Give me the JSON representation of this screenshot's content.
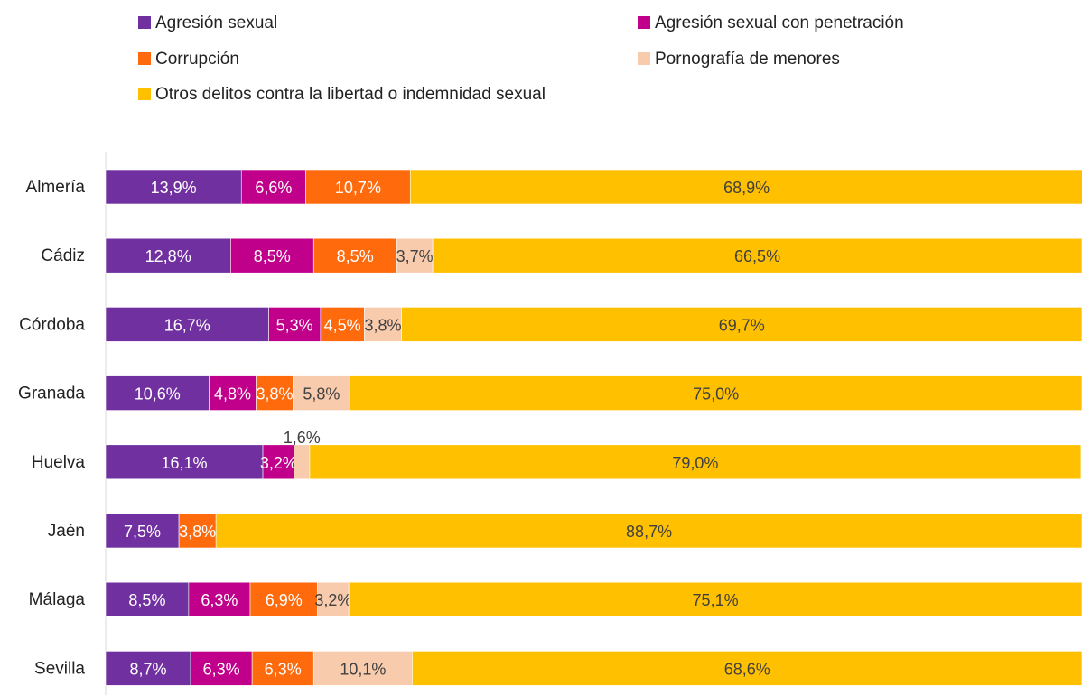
{
  "chart_data": {
    "type": "bar",
    "orientation": "horizontal",
    "stacked": true,
    "percent_stacked": true,
    "categories": [
      "Almería",
      "Cádiz",
      "Córdoba",
      "Granada",
      "Huelva",
      "Jaén",
      "Málaga",
      "Sevilla"
    ],
    "series": [
      {
        "name": "Agresión sexual",
        "color": "#7030A0",
        "label_color": "#ffffff",
        "values": [
          13.9,
          12.8,
          16.7,
          10.6,
          16.1,
          7.5,
          8.5,
          8.7
        ],
        "labels": [
          "13,9%",
          "12,8%",
          "16,7%",
          "10,6%",
          "16,1%",
          "7,5%",
          "8,5%",
          "8,7%"
        ]
      },
      {
        "name": "Agresión sexual  con penetración",
        "color": "#C0008A",
        "label_color": "#ffffff",
        "values": [
          6.6,
          8.5,
          5.3,
          4.8,
          3.2,
          0,
          6.3,
          6.3
        ],
        "labels": [
          "6,6%",
          "8,5%",
          "5,3%",
          "4,8%",
          "3,2%",
          "",
          "6,3%",
          "6,3%"
        ]
      },
      {
        "name": "Corrupción",
        "color": "#FF6A0D",
        "label_color": "#ffffff",
        "values": [
          10.7,
          8.5,
          4.5,
          3.8,
          0,
          3.8,
          6.9,
          6.3
        ],
        "labels": [
          "10,7%",
          "8,5%",
          "4,5%",
          "3,8%",
          "",
          "3,8%",
          "6,9%",
          "6,3%"
        ]
      },
      {
        "name": "Pornografía de menores",
        "color": "#F8CBAD",
        "label_color": "#404040",
        "values": [
          0,
          3.7,
          3.8,
          5.8,
          1.6,
          0,
          3.2,
          10.1
        ],
        "labels": [
          "",
          "3,7%",
          "3,8%",
          "5,8%",
          "1,6%",
          "",
          "3,2%",
          "10,1%"
        ]
      },
      {
        "name": "Otros delitos contra la libertad o indemnidad sexual",
        "color": "#FFC000",
        "label_color": "#404040",
        "values": [
          68.9,
          66.5,
          69.7,
          75.0,
          79.0,
          88.7,
          75.1,
          68.6
        ],
        "labels": [
          "68,9%",
          "66,5%",
          "69,7%",
          "75,0%",
          "79,0%",
          "88,7%",
          "75,1%",
          "68,6%"
        ]
      }
    ],
    "xlim": [
      0,
      100
    ],
    "grid": false,
    "legend_position": "top"
  }
}
